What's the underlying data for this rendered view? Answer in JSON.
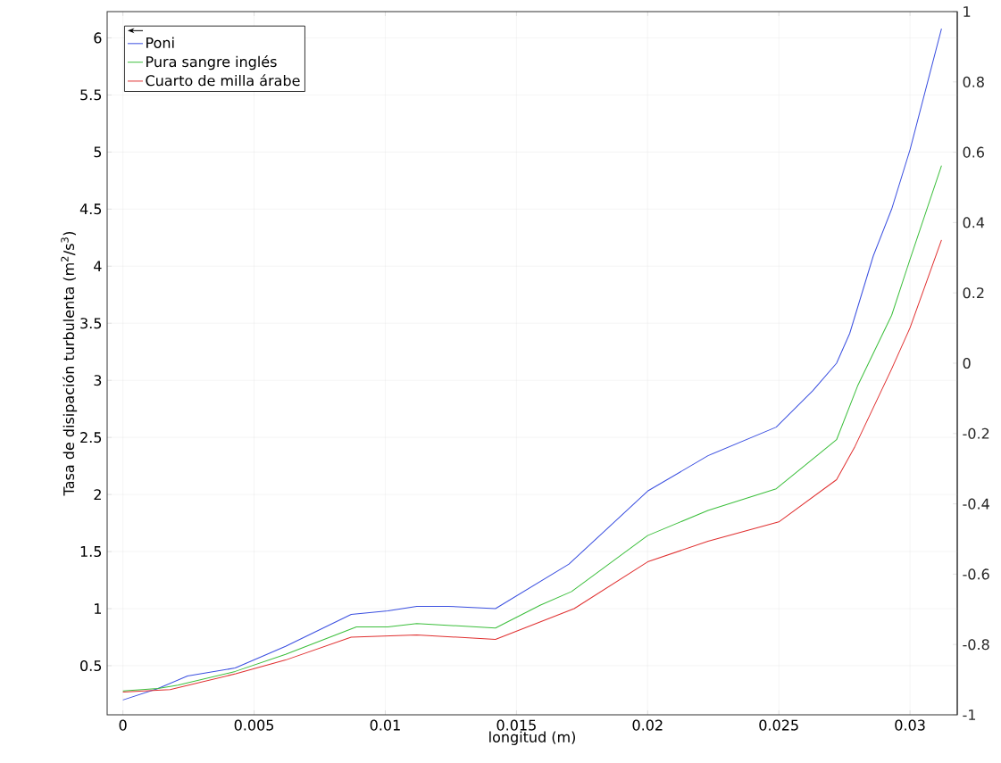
{
  "chart_data": {
    "type": "line",
    "xlabel": "longitud (m)",
    "ylabel": "Tasa de disipación turbulenta (m$^{2}$/s$^{3}$)",
    "xlim": [
      -0.0006,
      0.0318
    ],
    "ylim": [
      0.07,
      6.23
    ],
    "y2lim": [
      -1,
      1
    ],
    "xticks": [
      0,
      0.005,
      0.01,
      0.015,
      0.02,
      0.025,
      0.03
    ],
    "yticks": [
      0.5,
      1,
      1.5,
      2,
      2.5,
      3,
      3.5,
      4,
      4.5,
      5,
      5.5,
      6
    ],
    "y2ticks": [
      -1,
      -0.8,
      -0.6,
      -0.4,
      -0.2,
      0,
      0.2,
      0.4,
      0.6,
      0.8,
      1
    ],
    "grid": true,
    "legend": "top left",
    "marker": "none",
    "line_style": "solid",
    "series": [
      {
        "name": "Poni",
        "color": "#3a4fe0",
        "x": [
          0,
          0.00134,
          0.00246,
          0.00428,
          0.0062,
          0.0087,
          0.0101,
          0.0112,
          0.0124,
          0.0142,
          0.017,
          0.02,
          0.0223,
          0.0249,
          0.0263,
          0.0272,
          0.0277,
          0.0286,
          0.0293,
          0.03,
          0.0306,
          0.0312
        ],
        "values": [
          0.2,
          0.3,
          0.41,
          0.48,
          0.67,
          0.95,
          0.98,
          1.02,
          1.02,
          1.0,
          1.39,
          2.03,
          2.34,
          2.59,
          2.91,
          3.15,
          3.41,
          4.09,
          4.5,
          5.02,
          5.55,
          6.08
        ]
      },
      {
        "name": "Pura sangre inglés",
        "color": "#3cbf3c",
        "x": [
          0,
          0.00134,
          0.0021,
          0.00428,
          0.0062,
          0.0089,
          0.0101,
          0.0112,
          0.0142,
          0.0159,
          0.0171,
          0.02,
          0.0223,
          0.0249,
          0.0272,
          0.028,
          0.0293,
          0.03,
          0.0312
        ],
        "values": [
          0.28,
          0.3,
          0.33,
          0.45,
          0.6,
          0.84,
          0.84,
          0.87,
          0.83,
          1.03,
          1.15,
          1.64,
          1.86,
          2.05,
          2.48,
          2.95,
          3.57,
          4.06,
          4.88
        ]
      },
      {
        "name": "Cuarto de milla árabe",
        "color": "#e03030",
        "x": [
          0,
          0.0018,
          0.0043,
          0.0062,
          0.0087,
          0.0112,
          0.0142,
          0.0172,
          0.02,
          0.0223,
          0.025,
          0.0272,
          0.0279,
          0.0293,
          0.03,
          0.0312
        ],
        "values": [
          0.27,
          0.29,
          0.43,
          0.55,
          0.75,
          0.77,
          0.73,
          1.0,
          1.41,
          1.59,
          1.76,
          2.13,
          2.42,
          3.1,
          3.46,
          4.23
        ]
      }
    ]
  }
}
